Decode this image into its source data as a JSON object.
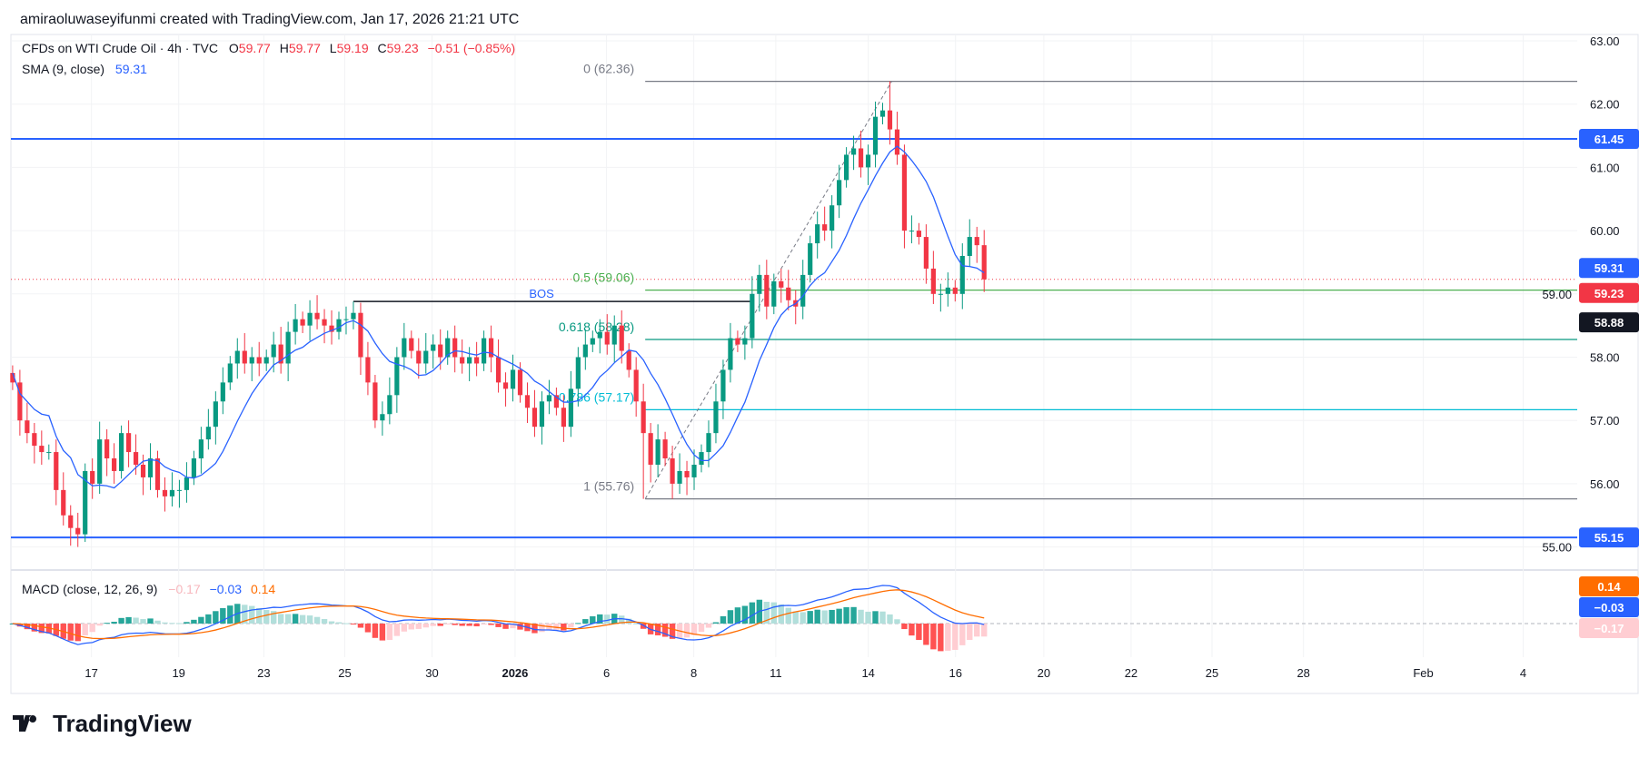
{
  "header": {
    "credit": "amiraoluwaseyifunmi created with TradingView.com, Jan 17, 2026 21:21 UTC"
  },
  "legend": {
    "symbol": "CFDs on WTI Crude Oil · 4h · TVC",
    "o_label": "O",
    "o": "59.77",
    "h_label": "H",
    "h": "59.77",
    "l_label": "L",
    "l": "59.19",
    "c_label": "C",
    "c": "59.23",
    "change": "−0.51 (−0.85%)",
    "sma_label": "SMA (9, close)",
    "sma_value": "59.31",
    "macd_label": "MACD (close, 12, 26, 9)",
    "macd_hist": "−0.17",
    "macd_line": "−0.03",
    "macd_signal": "0.14"
  },
  "price_axis": [
    "63.00",
    "62.00",
    "61.00",
    "60.00",
    "59.00",
    "58.00",
    "57.00",
    "56.00",
    "55.00"
  ],
  "badges": {
    "resistance": "61.45",
    "sma": "59.31",
    "last": "59.23",
    "bos": "58.88",
    "support": "55.15",
    "macd_signal": "0.14",
    "macd_line": "−0.03",
    "macd_hist": "−0.17"
  },
  "annotations": {
    "bos": "BOS",
    "fib": [
      {
        "label": "0 (62.36)",
        "level": 62.36,
        "color": "#787b86"
      },
      {
        "label": "0.5 (59.06)",
        "level": 59.06,
        "color": "#4caf50"
      },
      {
        "label": "0.618 (58.28)",
        "level": 58.28,
        "color": "#089981"
      },
      {
        "label": "0.786 (57.17)",
        "level": 57.17,
        "color": "#00bcd4"
      },
      {
        "label": "1 (55.76)",
        "level": 55.76,
        "color": "#787b86"
      }
    ]
  },
  "levels": {
    "resistance": 61.45,
    "support": 55.15,
    "bos": 58.88,
    "last": 59.23
  },
  "time_axis": [
    "17",
    "19",
    "23",
    "25",
    "30",
    "2026",
    "6",
    "8",
    "11",
    "14",
    "16",
    "20",
    "22",
    "25",
    "28",
    "Feb",
    "4"
  ],
  "logo": "TradingView",
  "colors": {
    "up": "#089981",
    "down": "#f23645",
    "sma": "#2962ff",
    "signal": "#ff6d00",
    "hline": "#2962ff"
  },
  "chart_data": {
    "type": "candlestick",
    "timeframe": "4h",
    "closes": [
      57.6,
      57.0,
      56.8,
      56.6,
      56.5,
      56.5,
      55.9,
      55.5,
      55.3,
      55.2,
      56.2,
      56.0,
      56.7,
      56.4,
      56.2,
      56.8,
      56.5,
      56.3,
      56.1,
      56.4,
      55.9,
      55.8,
      55.9,
      55.9,
      56.1,
      56.4,
      56.7,
      56.9,
      57.3,
      57.6,
      57.9,
      58.1,
      57.9,
      58.0,
      57.9,
      58.0,
      58.2,
      57.9,
      58.4,
      58.6,
      58.5,
      58.7,
      58.6,
      58.5,
      58.4,
      58.6,
      58.6,
      58.7,
      58.0,
      57.6,
      57.0,
      57.1,
      57.4,
      58.0,
      58.3,
      58.1,
      57.9,
      58.1,
      58.2,
      58.0,
      58.3,
      58.0,
      57.9,
      58.0,
      57.9,
      58.3,
      58.0,
      57.6,
      57.5,
      57.8,
      57.4,
      57.2,
      56.9,
      57.3,
      57.4,
      57.2,
      56.9,
      57.5,
      58.0,
      58.2,
      58.3,
      58.4,
      58.2,
      58.5,
      58.1,
      57.8,
      57.3,
      56.8,
      56.3,
      56.7,
      56.4,
      56.0,
      56.2,
      56.1,
      56.3,
      56.5,
      56.8,
      57.3,
      57.8,
      58.3,
      58.2,
      58.3,
      59.0,
      59.3,
      58.8,
      59.2,
      59.1,
      58.9,
      58.8,
      59.3,
      59.8,
      60.1,
      60.0,
      60.4,
      60.8,
      61.2,
      61.3,
      61.0,
      61.2,
      61.8,
      61.9,
      61.6,
      61.2,
      60.0,
      60.0,
      59.9,
      59.4,
      59.0,
      59.0,
      59.1,
      59.0,
      59.6,
      59.9,
      59.77,
      59.23
    ],
    "first_open": 57.75,
    "extreme_wicks": {
      "9": {
        "low": 55.0
      },
      "121": {
        "high": 62.36
      },
      "87": {
        "low": 55.76
      },
      "47": {
        "high": 58.88
      }
    },
    "sma_period": 9,
    "ylim": [
      54.9,
      63.1
    ]
  }
}
